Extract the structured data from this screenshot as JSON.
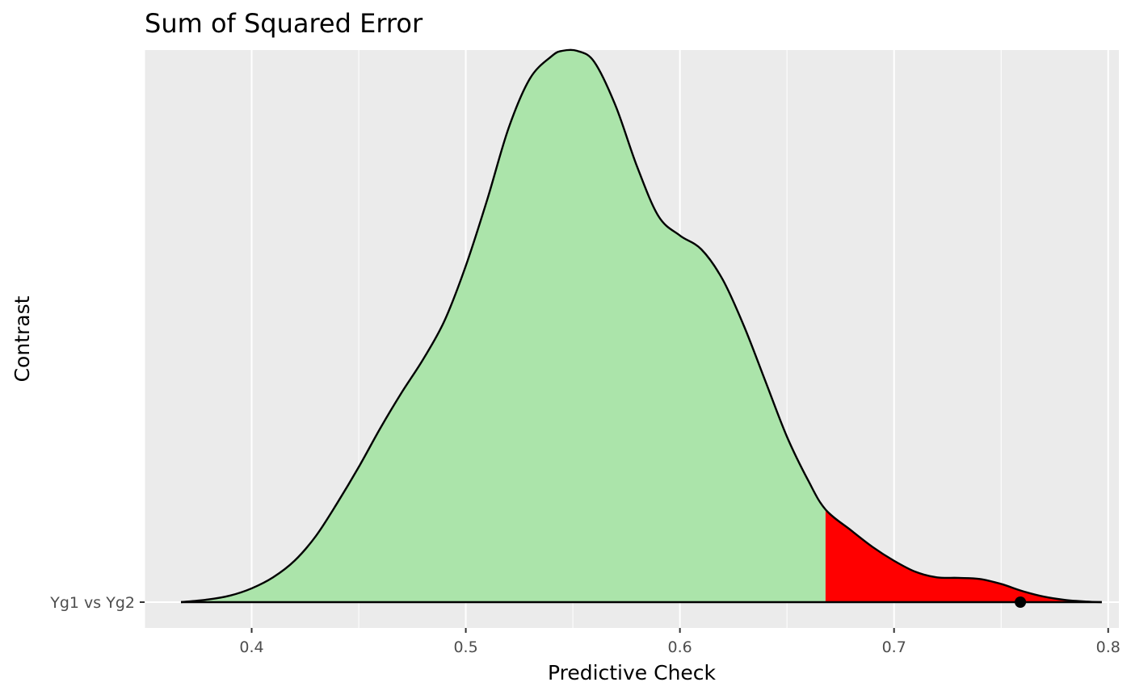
{
  "chart_data": {
    "type": "area",
    "title": "Sum of Squared Error",
    "xlabel": "Predictive Check",
    "ylabel": "Contrast",
    "xlim": [
      0.35,
      0.805
    ],
    "x_ticks": [
      0.4,
      0.5,
      0.6,
      0.7,
      0.8
    ],
    "x_tick_labels": [
      "0.4",
      "0.5",
      "0.6",
      "0.7",
      "0.8"
    ],
    "y_categories": [
      "Yg1 vs Yg2"
    ],
    "grid": true,
    "legend": "none",
    "density_curve": {
      "x": [
        0.367,
        0.38,
        0.39,
        0.4,
        0.41,
        0.42,
        0.43,
        0.44,
        0.45,
        0.46,
        0.47,
        0.48,
        0.49,
        0.5,
        0.51,
        0.52,
        0.53,
        0.54,
        0.545,
        0.552,
        0.56,
        0.57,
        0.58,
        0.59,
        0.6,
        0.61,
        0.62,
        0.63,
        0.64,
        0.65,
        0.66,
        0.668,
        0.68,
        0.69,
        0.7,
        0.71,
        0.72,
        0.73,
        0.74,
        0.75,
        0.76,
        0.77,
        0.78,
        0.79,
        0.797
      ],
      "density": [
        0.0,
        0.005,
        0.012,
        0.025,
        0.045,
        0.075,
        0.12,
        0.18,
        0.245,
        0.315,
        0.38,
        0.44,
        0.51,
        0.61,
        0.73,
        0.86,
        0.95,
        0.99,
        1.0,
        1.0,
        0.98,
        0.9,
        0.79,
        0.7,
        0.665,
        0.64,
        0.585,
        0.5,
        0.4,
        0.3,
        0.22,
        0.168,
        0.13,
        0.1,
        0.075,
        0.055,
        0.045,
        0.044,
        0.042,
        0.033,
        0.02,
        0.01,
        0.004,
        0.001,
        0.0
      ]
    },
    "tail_threshold": 0.668,
    "observed_point": {
      "x": 0.759,
      "category": "Yg1 vs Yg2"
    },
    "colors": {
      "panel_background": "#EBEBEB",
      "gridline": "#FFFFFF",
      "density_fill": "#ABE4AA",
      "tail_fill": "#FF0000",
      "curve_line": "#000000",
      "point": "#000000"
    }
  }
}
